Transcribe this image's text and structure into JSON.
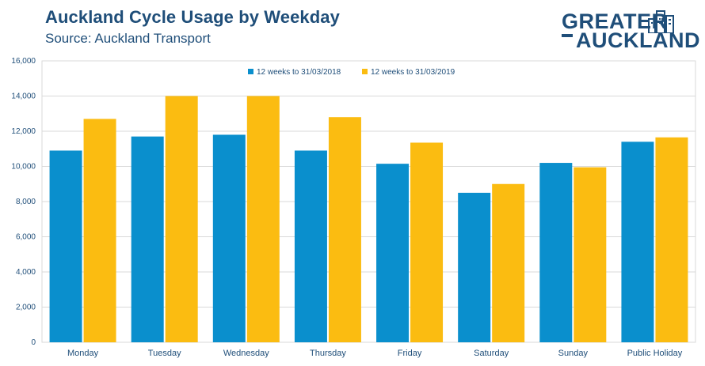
{
  "title": "Auckland Cycle Usage by Weekday",
  "subtitle": "Source: Auckland Transport",
  "logo": {
    "line1": "GREATER",
    "line2": "AUCKLAND",
    "icon": "city-buildings-icon"
  },
  "colors": {
    "series1": "#0a8fcd",
    "series2": "#fbbc11",
    "title": "#1f4e79",
    "grid": "#d9d9d9"
  },
  "chart_data": {
    "type": "bar",
    "categories": [
      "Monday",
      "Tuesday",
      "Wednesday",
      "Thursday",
      "Friday",
      "Saturday",
      "Sunday",
      "Public Holiday"
    ],
    "series": [
      {
        "name": "12 weeks to 31/03/2018",
        "values": [
          10900,
          11700,
          11800,
          10900,
          10150,
          8500,
          10200,
          11400
        ]
      },
      {
        "name": "12 weeks to 31/03/2019",
        "values": [
          12700,
          14000,
          14000,
          12800,
          11350,
          9000,
          9950,
          11650
        ]
      }
    ],
    "ylim": [
      0,
      16000
    ],
    "yticks": [
      "0",
      "2,000",
      "4,000",
      "6,000",
      "8,000",
      "10,000",
      "12,000",
      "14,000",
      "16,000"
    ],
    "ytick_values": [
      0,
      2000,
      4000,
      6000,
      8000,
      10000,
      12000,
      14000,
      16000
    ],
    "grid": true,
    "legend": "top-center"
  }
}
